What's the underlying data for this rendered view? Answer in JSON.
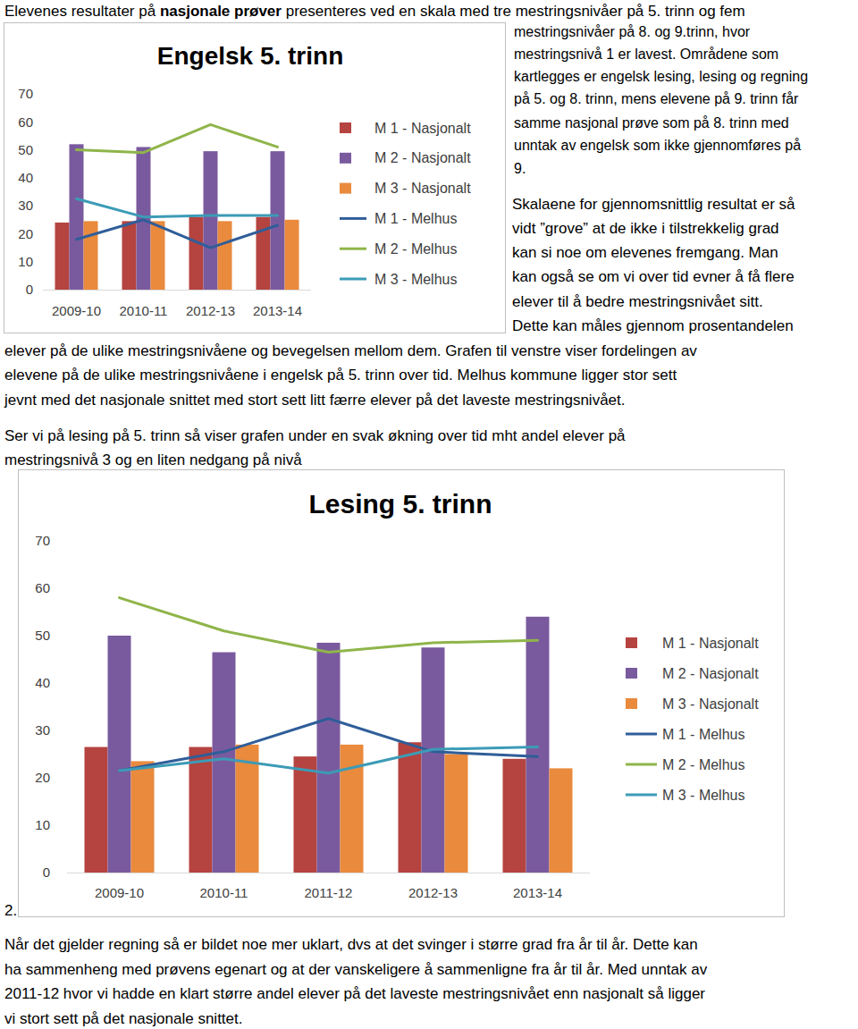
{
  "document": {
    "intro": {
      "before": "Elevenes resultater på ",
      "bold": "nasjonale prøver",
      "after": " presenteres ved en skala med tre mestringsnivåer på 5. trinn og fem"
    },
    "side_lines": [
      "mestringsnivåer på 8. og 9.trinn, hvor",
      "mestringsnivå 1 er lavest. Områdene som",
      "kartlegges er engelsk lesing, lesing og regning",
      "på 5. og 8. trinn, mens elevene på 9. trinn får",
      "samme nasjonal prøve som på 8. trinn med",
      "unntak av engelsk som ikke gjennomføres på",
      "9."
    ],
    "side_lines_2": [
      "Skalaene for gjennomsnittlig resultat er så",
      "vidt ”grove” at de ikke i tilstrekkelig grad",
      "kan si noe om elevenes fremgang. Man",
      "kan også se om vi over tid evner å få flere",
      "elever til å bedre mestringsnivået sitt.",
      "Dette kan måles gjennom prosentandelen"
    ],
    "full_lines": [
      "elever på de ulike mestringsnivåene og bevegelsen mellom dem. Grafen til venstre viser fordelingen av",
      "elevene på de ulike mestringsnivåene i engelsk på 5. trinn over tid. Melhus kommune ligger stor sett",
      "jevnt med det nasjonale snittet med stort sett litt færre elever på det laveste mestringsnivået."
    ],
    "lesing_lines": [
      "Ser vi på lesing på 5. trinn så viser grafen under en svak økning over tid mht andel elever på",
      "mestringsnivå 3 og en liten nedgang på nivå"
    ],
    "figure_number": "2.",
    "closing_lines": [
      "Når det gjelder regning så er bildet noe mer uklart, dvs at det svinger i større grad fra år til år. Dette kan",
      "ha sammenheng med prøvens egenart og at der vanskeligere å sammenligne fra år til år. Med unntak av",
      "2011-12 hvor vi hadde en klart større andel elever på det laveste mestringsnivået enn nasjonalt så ligger",
      "vi stort sett på det nasjonale snittet."
    ]
  },
  "chart_data": [
    {
      "type": "bar",
      "title": "Engelsk 5. trinn",
      "categories": [
        "2009-10",
        "2010-11",
        "2012-13",
        "2013-14"
      ],
      "ylim": [
        0,
        70
      ],
      "yticks": [
        0,
        10,
        20,
        30,
        40,
        50,
        60,
        70
      ],
      "grid": false,
      "legend": "right",
      "series": [
        {
          "name": "M 1 - Nasjonalt",
          "type": "bar",
          "color": "#b5433f",
          "values": [
            24,
            24.5,
            26,
            26
          ]
        },
        {
          "name": "M 2 - Nasjonalt",
          "type": "bar",
          "color": "#7a5a9e",
          "values": [
            52,
            51,
            49.5,
            49.5
          ]
        },
        {
          "name": "M 3 - Nasjonalt",
          "type": "bar",
          "color": "#e98a3d",
          "values": [
            24.5,
            24.5,
            24.5,
            25
          ]
        },
        {
          "name": "M 1 - Melhus",
          "type": "line",
          "color": "#2f5e99",
          "values": [
            18,
            25,
            15,
            23
          ]
        },
        {
          "name": "M 2 - Melhus",
          "type": "line",
          "color": "#8fb54a",
          "values": [
            50,
            49,
            59,
            51
          ]
        },
        {
          "name": "M 3 - Melhus",
          "type": "line",
          "color": "#3c9bb7",
          "values": [
            32.5,
            26,
            26.5,
            26.5
          ]
        }
      ]
    },
    {
      "type": "bar",
      "title": "Lesing 5. trinn",
      "categories": [
        "2009-10",
        "2010-11",
        "2011-12",
        "2012-13",
        "2013-14"
      ],
      "ylim": [
        0,
        70
      ],
      "yticks": [
        0,
        10,
        20,
        30,
        40,
        50,
        60,
        70
      ],
      "grid": false,
      "legend": "right",
      "series": [
        {
          "name": "M 1 - Nasjonalt",
          "type": "bar",
          "color": "#b5433f",
          "values": [
            26.5,
            26.5,
            24.5,
            27.5,
            24
          ]
        },
        {
          "name": "M 2 - Nasjonalt",
          "type": "bar",
          "color": "#7a5a9e",
          "values": [
            50,
            46.5,
            48.5,
            47.5,
            54
          ]
        },
        {
          "name": "M 3 - Nasjonalt",
          "type": "bar",
          "color": "#e98a3d",
          "values": [
            23.5,
            27,
            27,
            25,
            22
          ]
        },
        {
          "name": "M 1 - Melhus",
          "type": "line",
          "color": "#2f5e99",
          "values": [
            21.5,
            25.5,
            32.5,
            25.5,
            24.5
          ]
        },
        {
          "name": "M 2 - Melhus",
          "type": "line",
          "color": "#8fb54a",
          "values": [
            58,
            51,
            46.5,
            48.5,
            49
          ]
        },
        {
          "name": "M 3 - Melhus",
          "type": "line",
          "color": "#3c9bb7",
          "values": [
            21.5,
            24,
            21,
            26,
            26.5
          ]
        }
      ]
    }
  ]
}
